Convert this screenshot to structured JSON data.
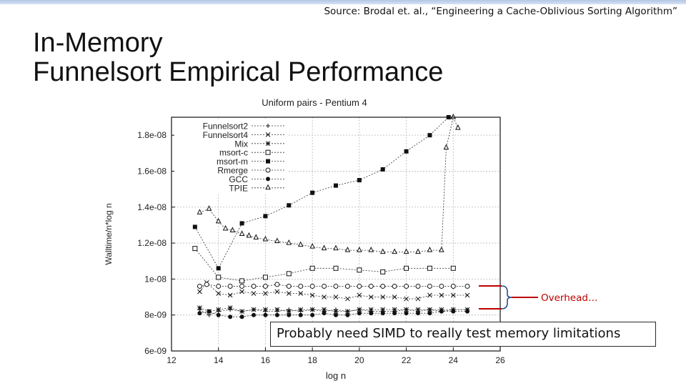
{
  "slide": {
    "source": "Source: Brodal et. al., “Engineering a Cache-Oblivious Sorting Algorithm”",
    "title_line1": "In-Memory",
    "title_line2": "Funnelsort Empirical Performance",
    "callout": "Overhead…",
    "note": "Probably need SIMD to really test memory limitations"
  },
  "chart_data": {
    "type": "line",
    "title": "Uniform pairs - Pentium 4",
    "xlabel": "log n",
    "ylabel": "Walltime/n*log n",
    "xlim": [
      12,
      26
    ],
    "ylim": [
      6e-09,
      1.9e-08
    ],
    "xticks": [
      12,
      14,
      16,
      18,
      20,
      22,
      24,
      26
    ],
    "xtick_labels": [
      "12",
      "14",
      "16",
      "18",
      "20",
      "22",
      "24",
      "26"
    ],
    "yticks": [
      6e-09,
      8e-09,
      1e-08,
      1.2e-08,
      1.4e-08,
      1.6e-08,
      1.8e-08
    ],
    "ytick_labels": [
      "6e-09",
      "8e-09",
      "1e-08",
      "1.2e-08",
      "1.4e-08",
      "1.6e-08",
      "1.8e-08"
    ],
    "grid": true,
    "legend_position": "top-left",
    "series": [
      {
        "name": "Funnelsort2",
        "marker": "plus",
        "points": [
          [
            13.2,
            8.3e-09
          ],
          [
            13.6,
            8e-09
          ],
          [
            14,
            8.2e-09
          ],
          [
            14.5,
            8.3e-09
          ],
          [
            15,
            8.2e-09
          ],
          [
            15.5,
            8.3e-09
          ],
          [
            16,
            8.2e-09
          ],
          [
            16.5,
            8.2e-09
          ],
          [
            17,
            8.3e-09
          ],
          [
            17.5,
            8.2e-09
          ],
          [
            18,
            8.3e-09
          ],
          [
            18.5,
            8.2e-09
          ],
          [
            19,
            8.3e-09
          ],
          [
            19.5,
            8.2e-09
          ],
          [
            20,
            8.3e-09
          ],
          [
            20.5,
            8.2e-09
          ],
          [
            21,
            8.2e-09
          ],
          [
            21.5,
            8.2e-09
          ],
          [
            22,
            8.3e-09
          ],
          [
            22.5,
            8.2e-09
          ],
          [
            23,
            8.3e-09
          ],
          [
            23.5,
            8.2e-09
          ],
          [
            24,
            8.3e-09
          ],
          [
            24.6,
            8.3e-09
          ]
        ]
      },
      {
        "name": "Funnelsort4",
        "marker": "x",
        "points": [
          [
            13.2,
            9.3e-09
          ],
          [
            13.5,
            9.8e-09
          ],
          [
            14,
            9.2e-09
          ],
          [
            14.5,
            9.1e-09
          ],
          [
            15,
            9.3e-09
          ],
          [
            15.5,
            9.2e-09
          ],
          [
            16,
            9.2e-09
          ],
          [
            16.5,
            9.3e-09
          ],
          [
            17,
            9.2e-09
          ],
          [
            17.5,
            9.2e-09
          ],
          [
            18,
            9.1e-09
          ],
          [
            18.5,
            9e-09
          ],
          [
            19,
            9e-09
          ],
          [
            19.5,
            8.9e-09
          ],
          [
            20,
            9.1e-09
          ],
          [
            20.5,
            9e-09
          ],
          [
            21,
            9e-09
          ],
          [
            21.5,
            9e-09
          ],
          [
            22,
            8.9e-09
          ],
          [
            22.5,
            8.9e-09
          ],
          [
            23,
            9.1e-09
          ],
          [
            23.5,
            9.1e-09
          ],
          [
            24,
            9.1e-09
          ],
          [
            24.6,
            9.1e-09
          ]
        ]
      },
      {
        "name": "Mix",
        "marker": "star",
        "points": [
          [
            13.2,
            8.4e-09
          ],
          [
            13.6,
            8.2e-09
          ],
          [
            14,
            8.3e-09
          ],
          [
            14.5,
            8.4e-09
          ],
          [
            15,
            8.2e-09
          ],
          [
            15.5,
            8.3e-09
          ],
          [
            16,
            8.3e-09
          ],
          [
            16.5,
            8.3e-09
          ],
          [
            17,
            8.2e-09
          ],
          [
            17.5,
            8.3e-09
          ],
          [
            18,
            8.3e-09
          ],
          [
            18.5,
            8.3e-09
          ],
          [
            19,
            8.2e-09
          ],
          [
            19.5,
            8.2e-09
          ],
          [
            20,
            8.3e-09
          ],
          [
            20.5,
            8.3e-09
          ],
          [
            21,
            8.3e-09
          ],
          [
            21.5,
            8.3e-09
          ],
          [
            22,
            8.3e-09
          ],
          [
            22.5,
            8.3e-09
          ],
          [
            23,
            8.3e-09
          ],
          [
            23.5,
            8.3e-09
          ],
          [
            24,
            8.3e-09
          ],
          [
            24.6,
            8.3e-09
          ]
        ]
      },
      {
        "name": "msort-c",
        "marker": "open-square",
        "points": [
          [
            13,
            1.17e-08
          ],
          [
            14,
            1.01e-08
          ],
          [
            15,
            9.9e-09
          ],
          [
            16,
            1.01e-08
          ],
          [
            17,
            1.03e-08
          ],
          [
            18,
            1.06e-08
          ],
          [
            19,
            1.06e-08
          ],
          [
            20,
            1.05e-08
          ],
          [
            21,
            1.04e-08
          ],
          [
            22,
            1.06e-08
          ],
          [
            23,
            1.06e-08
          ],
          [
            24,
            1.06e-08
          ]
        ]
      },
      {
        "name": "msort-m",
        "marker": "filled-square",
        "points": [
          [
            13,
            1.29e-08
          ],
          [
            14,
            1.06e-08
          ],
          [
            15,
            1.31e-08
          ],
          [
            16,
            1.35e-08
          ],
          [
            17,
            1.41e-08
          ],
          [
            18,
            1.48e-08
          ],
          [
            19,
            1.52e-08
          ],
          [
            20,
            1.55e-08
          ],
          [
            21,
            1.61e-08
          ],
          [
            22,
            1.71e-08
          ],
          [
            23,
            1.8e-08
          ],
          [
            23.8,
            1.9e-08
          ]
        ]
      },
      {
        "name": "Rmerge",
        "marker": "open-circle",
        "points": [
          [
            13.2,
            9.6e-09
          ],
          [
            13.5,
            9.7e-09
          ],
          [
            14,
            9.6e-09
          ],
          [
            14.5,
            9.6e-09
          ],
          [
            15,
            9.6e-09
          ],
          [
            15.5,
            9.6e-09
          ],
          [
            16,
            9.6e-09
          ],
          [
            16.5,
            9.7e-09
          ],
          [
            17,
            9.6e-09
          ],
          [
            17.5,
            9.6e-09
          ],
          [
            18,
            9.6e-09
          ],
          [
            18.5,
            9.6e-09
          ],
          [
            19,
            9.6e-09
          ],
          [
            19.5,
            9.6e-09
          ],
          [
            20,
            9.6e-09
          ],
          [
            20.5,
            9.6e-09
          ],
          [
            21,
            9.6e-09
          ],
          [
            21.5,
            9.6e-09
          ],
          [
            22,
            9.6e-09
          ],
          [
            22.5,
            9.6e-09
          ],
          [
            23,
            9.6e-09
          ],
          [
            23.5,
            9.6e-09
          ],
          [
            24,
            9.6e-09
          ],
          [
            24.6,
            9.6e-09
          ]
        ]
      },
      {
        "name": "GCC",
        "marker": "filled-circle",
        "points": [
          [
            13.2,
            8.1e-09
          ],
          [
            13.6,
            8.2e-09
          ],
          [
            14,
            8e-09
          ],
          [
            14.5,
            7.9e-09
          ],
          [
            15,
            7.9e-09
          ],
          [
            15.5,
            8e-09
          ],
          [
            16,
            8e-09
          ],
          [
            16.5,
            8e-09
          ],
          [
            17,
            8e-09
          ],
          [
            17.5,
            8e-09
          ],
          [
            18,
            8e-09
          ],
          [
            18.5,
            8.1e-09
          ],
          [
            19,
            8e-09
          ],
          [
            19.5,
            8e-09
          ],
          [
            20,
            8.1e-09
          ],
          [
            20.5,
            8.1e-09
          ],
          [
            21,
            8.1e-09
          ],
          [
            21.5,
            8.1e-09
          ],
          [
            22,
            8.1e-09
          ],
          [
            22.5,
            8.1e-09
          ],
          [
            23,
            8.1e-09
          ],
          [
            23.5,
            8.2e-09
          ],
          [
            24,
            8.2e-09
          ],
          [
            24.6,
            8.2e-09
          ]
        ]
      },
      {
        "name": "TPIE",
        "marker": "open-triangle",
        "points": [
          [
            13.2,
            1.37e-08
          ],
          [
            13.6,
            1.39e-08
          ],
          [
            14,
            1.32e-08
          ],
          [
            14.3,
            1.28e-08
          ],
          [
            14.6,
            1.27e-08
          ],
          [
            15,
            1.25e-08
          ],
          [
            15.3,
            1.24e-08
          ],
          [
            15.6,
            1.23e-08
          ],
          [
            16,
            1.22e-08
          ],
          [
            16.5,
            1.21e-08
          ],
          [
            17,
            1.2e-08
          ],
          [
            17.5,
            1.19e-08
          ],
          [
            18,
            1.18e-08
          ],
          [
            18.5,
            1.17e-08
          ],
          [
            19,
            1.17e-08
          ],
          [
            19.5,
            1.16e-08
          ],
          [
            20,
            1.16e-08
          ],
          [
            20.5,
            1.16e-08
          ],
          [
            21,
            1.15e-08
          ],
          [
            21.5,
            1.15e-08
          ],
          [
            22,
            1.15e-08
          ],
          [
            22.5,
            1.15e-08
          ],
          [
            23,
            1.16e-08
          ],
          [
            23.5,
            1.16e-08
          ],
          [
            23.7,
            1.73e-08
          ],
          [
            24,
            1.9e-08
          ],
          [
            24.2,
            1.84e-08
          ]
        ]
      }
    ]
  }
}
